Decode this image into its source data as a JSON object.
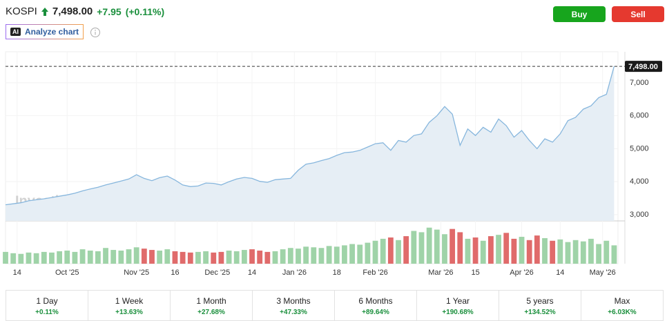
{
  "header": {
    "symbol": "KOSPI",
    "price": "7,498.00",
    "change": "+7.95",
    "change_pct": "(+0.11%)",
    "analyze": {
      "badge": "AI",
      "label": "Analyze chart"
    },
    "buy": "Buy",
    "sell": "Sell"
  },
  "chart_data": {
    "type": "area",
    "watermark": "Investing.com",
    "color": "#86b6dd",
    "area_color": "#e6eef5",
    "x": [
      0,
      2,
      4,
      6,
      8,
      10,
      12,
      14,
      16,
      18,
      20,
      22,
      24,
      26,
      28,
      30,
      32,
      34,
      36,
      38,
      40,
      42,
      44,
      46,
      48,
      50,
      52,
      54,
      56,
      58,
      60,
      62,
      64,
      66,
      68,
      70,
      72,
      74,
      76,
      78,
      80,
      82,
      84,
      86,
      88,
      90,
      92,
      94,
      96,
      98,
      100,
      102,
      104,
      106,
      108,
      110,
      112,
      114,
      116,
      118,
      120,
      122,
      124,
      126,
      128,
      130,
      132,
      134,
      136,
      138,
      140,
      142,
      144,
      146,
      148,
      150,
      152,
      154,
      156,
      158
    ],
    "values": [
      3300,
      3330,
      3360,
      3420,
      3450,
      3480,
      3520,
      3560,
      3600,
      3650,
      3720,
      3780,
      3830,
      3900,
      3960,
      4020,
      4080,
      4210,
      4100,
      4030,
      4120,
      4170,
      4050,
      3900,
      3850,
      3870,
      3960,
      3950,
      3900,
      4000,
      4080,
      4130,
      4100,
      4010,
      3980,
      4060,
      4080,
      4100,
      4350,
      4530,
      4570,
      4640,
      4700,
      4800,
      4880,
      4900,
      4950,
      5050,
      5150,
      5180,
      4950,
      5250,
      5200,
      5400,
      5450,
      5800,
      6000,
      6280,
      6050,
      5100,
      5600,
      5400,
      5650,
      5500,
      5900,
      5700,
      5350,
      5550,
      5250,
      5000,
      5300,
      5200,
      5450,
      5850,
      5950,
      6200,
      6300,
      6550,
      6650,
      7498
    ],
    "volume": {
      "values": [
        18,
        16,
        15,
        17,
        16,
        18,
        17,
        19,
        20,
        18,
        22,
        20,
        19,
        24,
        21,
        20,
        22,
        25,
        23,
        21,
        20,
        22,
        19,
        18,
        17,
        18,
        19,
        17,
        18,
        20,
        19,
        21,
        22,
        20,
        18,
        19,
        22,
        24,
        23,
        26,
        25,
        24,
        27,
        26,
        28,
        30,
        29,
        32,
        35,
        38,
        40,
        36,
        42,
        50,
        48,
        55,
        52,
        45,
        53,
        48,
        38,
        40,
        35,
        42,
        44,
        47,
        38,
        41,
        36,
        43,
        39,
        35,
        37,
        33,
        36,
        34,
        38,
        30,
        35,
        28
      ],
      "ylim": [
        0,
        60
      ],
      "up_color": "#9fd3a8",
      "down_color": "#e06b6b"
    },
    "xlim": [
      0,
      159
    ],
    "xticks": [
      {
        "value": 3,
        "label": "14"
      },
      {
        "value": 16,
        "label": "Oct '25"
      },
      {
        "value": 34,
        "label": "Nov '25"
      },
      {
        "value": 44,
        "label": "16"
      },
      {
        "value": 55,
        "label": "Dec '25"
      },
      {
        "value": 64,
        "label": "14"
      },
      {
        "value": 75,
        "label": "Jan '26"
      },
      {
        "value": 86,
        "label": "18"
      },
      {
        "value": 96,
        "label": "Feb '26"
      },
      {
        "value": 113,
        "label": "Mar '26"
      },
      {
        "value": 122,
        "label": "15"
      },
      {
        "value": 134,
        "label": "Apr '26"
      },
      {
        "value": 144,
        "label": "14"
      },
      {
        "value": 155,
        "label": "May '26"
      }
    ],
    "ylim": [
      2810,
      7940
    ],
    "yticks": [
      {
        "value": 3000,
        "label": "3,000"
      },
      {
        "value": 4000,
        "label": "4,000"
      },
      {
        "value": 5000,
        "label": "5,000"
      },
      {
        "value": 6000,
        "label": "6,000"
      },
      {
        "value": 7000,
        "label": "7,000"
      }
    ],
    "grid": true,
    "last_price": {
      "value": 7498,
      "label": "7,498.00"
    }
  },
  "periods": [
    {
      "label": "1 Day",
      "change": "+0.11%"
    },
    {
      "label": "1 Week",
      "change": "+13.63%"
    },
    {
      "label": "1 Month",
      "change": "+27.68%"
    },
    {
      "label": "3 Months",
      "change": "+47.33%"
    },
    {
      "label": "6 Months",
      "change": "+89.64%"
    },
    {
      "label": "1 Year",
      "change": "+190.68%"
    },
    {
      "label": "5 years",
      "change": "+134.52%"
    },
    {
      "label": "Max",
      "change": "+6.03K%"
    }
  ]
}
